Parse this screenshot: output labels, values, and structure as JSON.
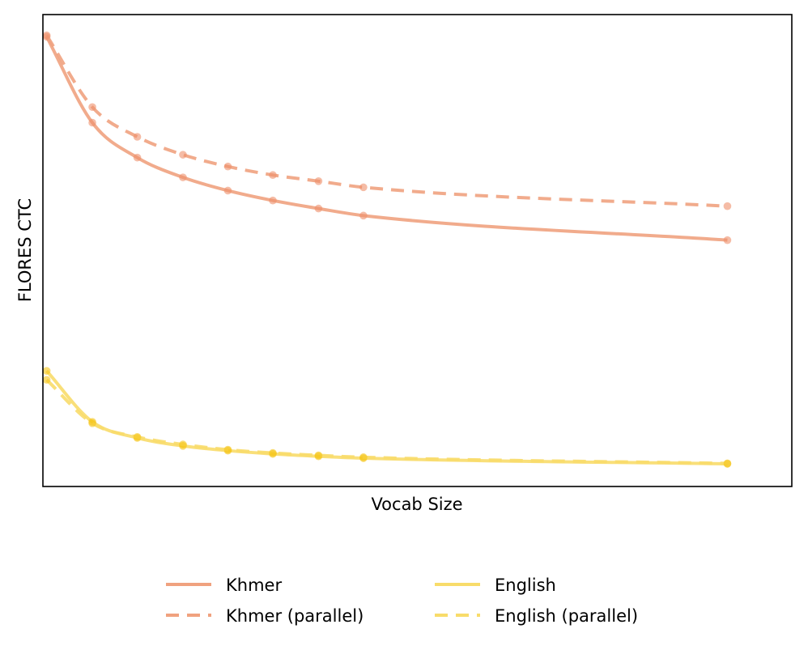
{
  "chart_data": {
    "type": "line",
    "title": "",
    "xlabel": "Vocab Size",
    "ylabel": "FLORES CTC",
    "x_ticks_shown": false,
    "y_ticks_shown": false,
    "grid": false,
    "legend_placement": "bottom-center, below plot, 2 columns",
    "xlim": [
      0,
      100
    ],
    "ylim": [
      0,
      100
    ],
    "note_units": "axes have no tick labels; values are relative positions",
    "series": [
      {
        "name": "Khmer",
        "style": "solid",
        "color": "#f0a27f",
        "marker_color": "#ee8f6b",
        "x": [
          0.5,
          6.6,
          12.6,
          18.7,
          24.7,
          30.7,
          36.8,
          42.8,
          91.4
        ],
        "y": [
          95.3,
          77.1,
          69.7,
          65.5,
          62.7,
          60.6,
          58.9,
          57.4,
          52.2
        ]
      },
      {
        "name": "Khmer (parallel)",
        "style": "dashed",
        "color": "#f0a27f",
        "marker_color": "#ee8f6b",
        "x": [
          0.5,
          6.6,
          12.6,
          18.7,
          24.7,
          30.7,
          36.8,
          42.8,
          91.4
        ],
        "y": [
          95.6,
          80.4,
          74.1,
          70.3,
          67.8,
          66.0,
          64.7,
          63.4,
          59.4
        ]
      },
      {
        "name": "English",
        "style": "solid",
        "color": "#f8dc6a",
        "marker_color": "#f5c518",
        "x": [
          0.5,
          6.6,
          12.6,
          18.7,
          24.7,
          30.7,
          36.8,
          42.8,
          91.4
        ],
        "y": [
          24.5,
          13.7,
          10.3,
          8.6,
          7.6,
          6.9,
          6.4,
          6.0,
          4.8
        ]
      },
      {
        "name": "English (parallel)",
        "style": "dashed",
        "color": "#f8dc6a",
        "marker_color": "#f5c518",
        "x": [
          0.5,
          6.6,
          12.6,
          18.7,
          24.7,
          30.7,
          36.8,
          42.8,
          91.4
        ],
        "y": [
          22.6,
          13.4,
          10.5,
          8.9,
          7.8,
          7.1,
          6.6,
          6.2,
          4.9
        ]
      }
    ]
  }
}
